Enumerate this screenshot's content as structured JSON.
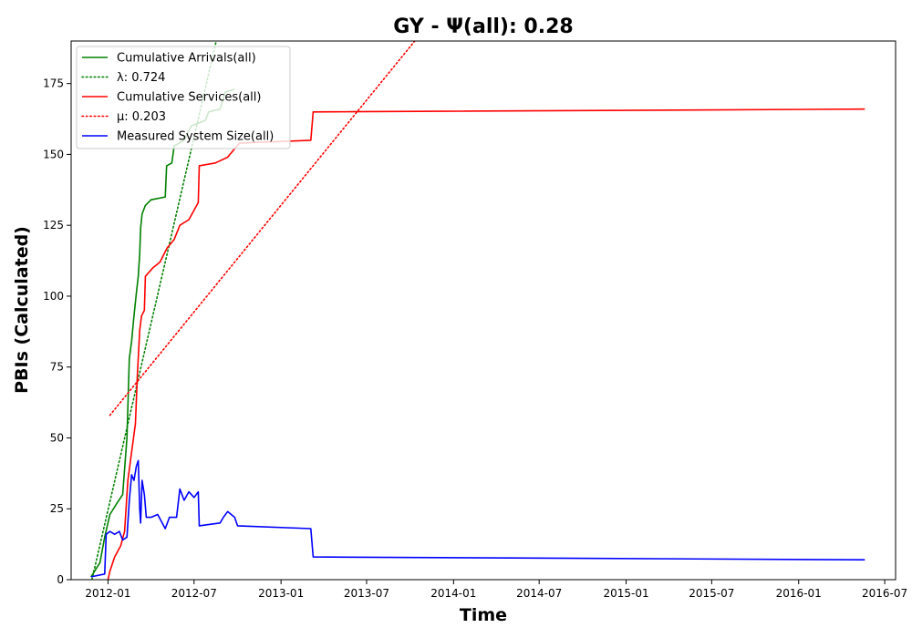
{
  "chart_data": {
    "type": "line",
    "title": "GY -  Ψ(all): 0.28",
    "xlabel": "Time",
    "ylabel": "PBIs (Calculated)",
    "xlim": [
      "2011-10-15",
      "2016-07-24"
    ],
    "ylim": [
      0,
      190
    ],
    "x_ticks": [
      "2012-01",
      "2012-07",
      "2013-01",
      "2013-07",
      "2014-01",
      "2014-07",
      "2015-01",
      "2015-07",
      "2016-01",
      "2016-07"
    ],
    "y_ticks": [
      0,
      25,
      50,
      75,
      100,
      125,
      150,
      175
    ],
    "grid": false,
    "legend_position": "top-left",
    "legend": [
      {
        "label": "Cumulative Arrivals(all)",
        "color": "#008000",
        "style": "solid"
      },
      {
        "label": "λ: 0.724",
        "color": "#008000",
        "style": "dotted"
      },
      {
        "label": "Cumulative Services(all)",
        "color": "#ff0000",
        "style": "solid"
      },
      {
        "label": "μ: 0.203",
        "color": "#ff0000",
        "style": "dotted"
      },
      {
        "label": "Measured System Size(all)",
        "color": "#0000ff",
        "style": "solid"
      }
    ],
    "series": [
      {
        "name": "Cumulative Arrivals(all)",
        "color": "#008000",
        "style": "solid",
        "points": [
          [
            "2011-11-26",
            1
          ],
          [
            "2011-12-15",
            6
          ],
          [
            "2011-12-25",
            15
          ],
          [
            "2012-01-05",
            23
          ],
          [
            "2012-01-20",
            27
          ],
          [
            "2012-02-01",
            30
          ],
          [
            "2012-02-10",
            50
          ],
          [
            "2012-02-15",
            78
          ],
          [
            "2012-02-20",
            84
          ],
          [
            "2012-02-25",
            93
          ],
          [
            "2012-03-01",
            101
          ],
          [
            "2012-03-05",
            107
          ],
          [
            "2012-03-08",
            115
          ],
          [
            "2012-03-10",
            124
          ],
          [
            "2012-03-13",
            129
          ],
          [
            "2012-03-20",
            132
          ],
          [
            "2012-04-01",
            134
          ],
          [
            "2012-05-01",
            135
          ],
          [
            "2012-05-04",
            146
          ],
          [
            "2012-05-15",
            147
          ],
          [
            "2012-05-20",
            153
          ],
          [
            "2012-06-10",
            155
          ],
          [
            "2012-06-25",
            160
          ],
          [
            "2012-07-25",
            162
          ],
          [
            "2012-08-01",
            165
          ],
          [
            "2012-08-25",
            166
          ],
          [
            "2012-09-05",
            172
          ],
          [
            "2012-09-25",
            173
          ]
        ]
      },
      {
        "name": "λ: 0.724",
        "color": "#008000",
        "style": "dotted",
        "points": [
          [
            "2011-11-28",
            0
          ],
          [
            "2012-08-17",
            190
          ]
        ]
      },
      {
        "name": "Cumulative Services(all)",
        "color": "#ff0000",
        "style": "solid",
        "points": [
          [
            "2012-01-01",
            0
          ],
          [
            "2012-01-05",
            3
          ],
          [
            "2012-01-15",
            8
          ],
          [
            "2012-01-28",
            12
          ],
          [
            "2012-02-05",
            17
          ],
          [
            "2012-02-12",
            35
          ],
          [
            "2012-02-20",
            45
          ],
          [
            "2012-02-28",
            55
          ],
          [
            "2012-03-03",
            72
          ],
          [
            "2012-03-08",
            88
          ],
          [
            "2012-03-12",
            93
          ],
          [
            "2012-03-18",
            95
          ],
          [
            "2012-03-20",
            107
          ],
          [
            "2012-04-05",
            110
          ],
          [
            "2012-04-20",
            112
          ],
          [
            "2012-05-05",
            117
          ],
          [
            "2012-05-20",
            120
          ],
          [
            "2012-06-01",
            125
          ],
          [
            "2012-06-20",
            127
          ],
          [
            "2012-07-10",
            133
          ],
          [
            "2012-07-12",
            146
          ],
          [
            "2012-08-15",
            147
          ],
          [
            "2012-09-10",
            149
          ],
          [
            "2012-09-25",
            152
          ],
          [
            "2012-10-05",
            154
          ],
          [
            "2013-03-05",
            155
          ],
          [
            "2013-03-10",
            165
          ],
          [
            "2016-05-20",
            166
          ]
        ]
      },
      {
        "name": "μ: 0.203",
        "color": "#ff0000",
        "style": "dotted",
        "points": [
          [
            "2012-01-05",
            58
          ],
          [
            "2013-10-11",
            190
          ]
        ]
      },
      {
        "name": "Measured System Size(all)",
        "color": "#0000ff",
        "style": "solid",
        "points": [
          [
            "2011-11-26",
            1
          ],
          [
            "2011-12-25",
            2
          ],
          [
            "2011-12-28",
            16
          ],
          [
            "2012-01-05",
            17
          ],
          [
            "2012-01-15",
            16
          ],
          [
            "2012-01-25",
            17
          ],
          [
            "2012-02-01",
            14
          ],
          [
            "2012-02-10",
            15
          ],
          [
            "2012-02-15",
            28
          ],
          [
            "2012-02-20",
            37
          ],
          [
            "2012-02-25",
            35
          ],
          [
            "2012-03-01",
            40
          ],
          [
            "2012-03-05",
            42
          ],
          [
            "2012-03-08",
            25
          ],
          [
            "2012-03-10",
            20
          ],
          [
            "2012-03-13",
            35
          ],
          [
            "2012-03-18",
            30
          ],
          [
            "2012-03-22",
            22
          ],
          [
            "2012-04-01",
            22
          ],
          [
            "2012-04-15",
            23
          ],
          [
            "2012-05-01",
            18
          ],
          [
            "2012-05-10",
            22
          ],
          [
            "2012-05-25",
            22
          ],
          [
            "2012-06-01",
            32
          ],
          [
            "2012-06-10",
            28
          ],
          [
            "2012-06-20",
            31
          ],
          [
            "2012-07-01",
            29
          ],
          [
            "2012-07-10",
            31
          ],
          [
            "2012-07-12",
            19
          ],
          [
            "2012-08-25",
            20
          ],
          [
            "2012-09-01",
            22
          ],
          [
            "2012-09-10",
            24
          ],
          [
            "2012-09-25",
            22
          ],
          [
            "2012-10-01",
            19
          ],
          [
            "2013-03-05",
            18
          ],
          [
            "2013-03-10",
            8
          ],
          [
            "2016-05-20",
            7
          ]
        ]
      }
    ]
  }
}
